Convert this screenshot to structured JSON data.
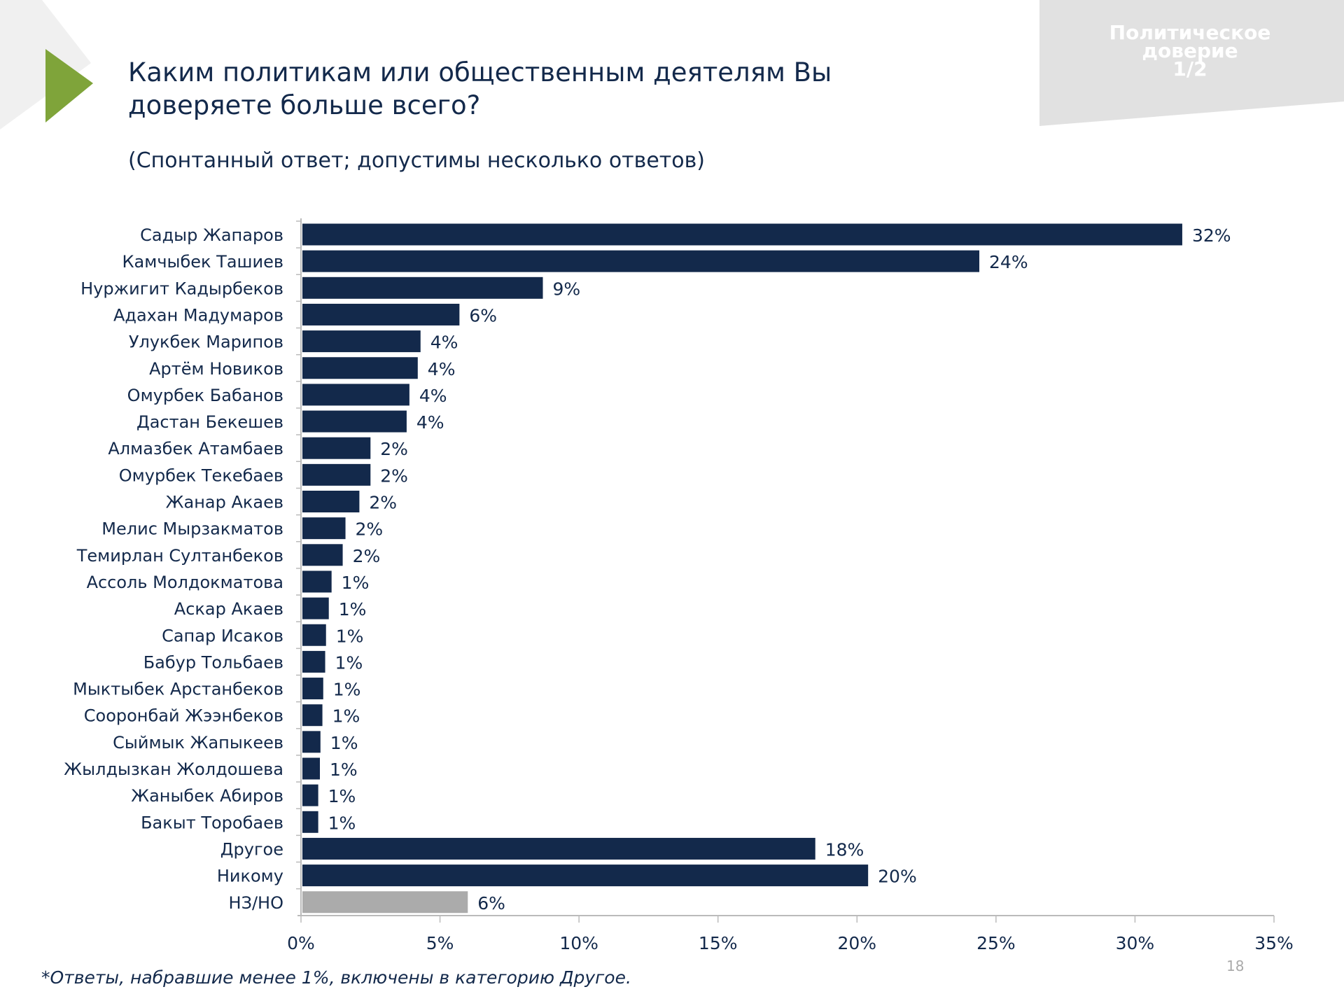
{
  "header": {
    "title_line1": "Каким политикам или общественным деятелям Вы",
    "title_line2": "доверяете больше всего?",
    "subtitle": "(Спонтанный ответ; допустимы несколько ответов)",
    "section_line1": "Политическое",
    "section_line2": "доверие",
    "section_page": "1/2"
  },
  "footer": {
    "footnote": "*Ответы, набравшие менее 1%, включены в категорию Другое.",
    "page_number": "18"
  },
  "colors": {
    "bar": "#13294b",
    "bar_na": "#ababab",
    "accent": "#7fa43a",
    "panel": "#e1e1e1"
  },
  "chart_data": {
    "type": "bar",
    "orientation": "horizontal",
    "title": "Каким политикам или общественным деятелям Вы доверяете больше всего?",
    "xlim": [
      0,
      35
    ],
    "xticks": [
      "0%",
      "5%",
      "10%",
      "15%",
      "20%",
      "25%",
      "30%",
      "35%"
    ],
    "categories": [
      "Садыр Жапаров",
      "Камчыбек Ташиев",
      "Нуржигит Кадырбеков",
      "Адахан Мадумаров",
      "Улукбек Марипов",
      "Артём Новиков",
      "Омурбек Бабанов",
      "Дастан Бекешев",
      "Алмазбек Атамбаев",
      "Омурбек Текебаев",
      "Жанар Акаев",
      "Мелис Мырзакматов",
      "Темирлан Султанбеков",
      "Ассоль Молдокматова",
      "Аскар Акаев",
      "Сапар Исаков",
      "Бабур Тольбаев",
      "Мыктыбек Арстанбеков",
      "Сооронбай Жээнбеков",
      "Сыймык Жапыкеев",
      "Жылдызкан Жолдошева",
      "Жаныбек Абиров",
      "Бакыт Торобаев",
      "Другое",
      "Никому",
      "НЗ/НО"
    ],
    "values": [
      31.7,
      24.4,
      8.7,
      5.7,
      4.3,
      4.2,
      3.9,
      3.8,
      2.5,
      2.5,
      2.1,
      1.6,
      1.5,
      1.1,
      1.0,
      0.9,
      0.87,
      0.8,
      0.77,
      0.7,
      0.68,
      0.62,
      0.62,
      18.5,
      20.4,
      6.0
    ],
    "labels": [
      "32%",
      "24%",
      "9%",
      "6%",
      "4%",
      "4%",
      "4%",
      "4%",
      "2%",
      "2%",
      "2%",
      "2%",
      "2%",
      "1%",
      "1%",
      "1%",
      "1%",
      "1%",
      "1%",
      "1%",
      "1%",
      "1%",
      "1%",
      "18%",
      "20%",
      "6%"
    ],
    "highlight_gray": [
      "НЗ/НО"
    ]
  }
}
